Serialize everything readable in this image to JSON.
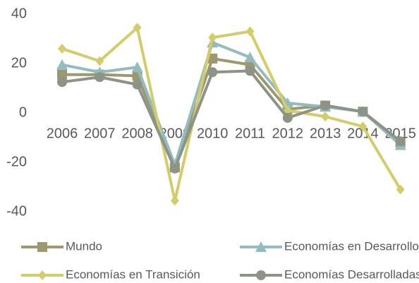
{
  "chart_data": {
    "type": "line",
    "categories": [
      "2006",
      "2007",
      "2008",
      "2009",
      "2010",
      "2011",
      "2012",
      "2013",
      "2014",
      "2015"
    ],
    "series": [
      {
        "name": "Mundo",
        "color": "#9c9870",
        "marker": "square",
        "values": [
          15.5,
          15.5,
          15,
          -22,
          22,
          19.5,
          1.5,
          3,
          0.5,
          -12
        ]
      },
      {
        "name": "Economías en Desarrollo",
        "color": "#92bcbd",
        "marker": "triangle",
        "values": [
          19.5,
          16.5,
          18.5,
          -21,
          28.5,
          22.5,
          4,
          2.5,
          0.5,
          -13
        ]
      },
      {
        "name": "Economías en Transición",
        "color": "#d3cc6a",
        "marker": "diamond",
        "values": [
          26,
          21,
          34.5,
          -35.5,
          30.5,
          33,
          1,
          -1.5,
          -5.5,
          -31
        ]
      },
      {
        "name": "Economías Desarrolladas",
        "color": "#8c9488",
        "marker": "circle",
        "values": [
          12.5,
          14.5,
          11.5,
          -22.5,
          16.5,
          17,
          -2,
          3,
          0.5,
          -11.5
        ]
      }
    ],
    "ylim": [
      -40,
      40
    ],
    "yticks": [
      -40,
      -20,
      0,
      20,
      40
    ]
  }
}
